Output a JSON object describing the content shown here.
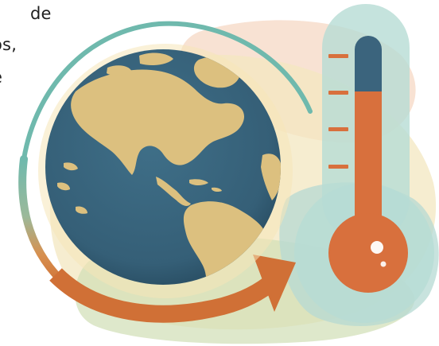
{
  "text_fragments": [
    "de",
    "os,",
    "e"
  ],
  "illustration": {
    "subject": "globe-with-thermometer",
    "colors": {
      "ocean": "#3c6a83",
      "land": "#dcc07f",
      "mercury": "#d8703d",
      "mercury_dark": "#c76433",
      "thermometer_top": "#3b647d",
      "orbit_arrow": "#d07036",
      "orbit_teal": "#6fb9ad",
      "blob_cream": "#f2e3b5",
      "blob_teal": "#a9d3cb",
      "blob_peach": "#f4cfb7",
      "blob_green": "#c9d8a8",
      "thermometer_glass": "#b7dcd5"
    }
  }
}
